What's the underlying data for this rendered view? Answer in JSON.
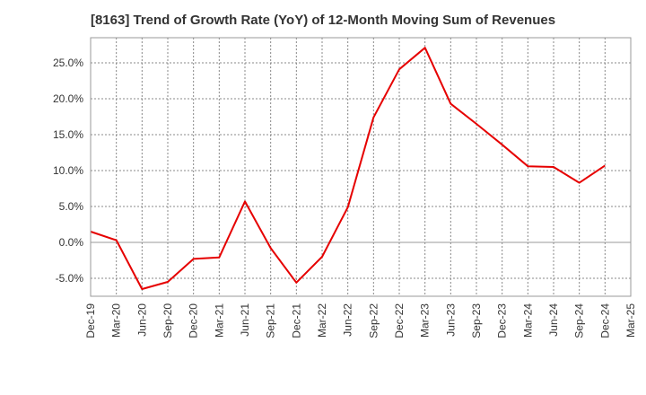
{
  "chart_data": {
    "type": "line",
    "title": "[8163]  Trend of Growth Rate (YoY) of 12-Month Moving Sum of Revenues",
    "xlabel": "",
    "ylabel": "",
    "x_ticks": [
      "Dec-19",
      "Mar-20",
      "Jun-20",
      "Sep-20",
      "Dec-20",
      "Mar-21",
      "Jun-21",
      "Sep-21",
      "Dec-21",
      "Mar-22",
      "Jun-22",
      "Sep-22",
      "Dec-22",
      "Mar-23",
      "Jun-23",
      "Sep-23",
      "Dec-23",
      "Mar-24",
      "Jun-24",
      "Sep-24",
      "Dec-24",
      "Mar-25"
    ],
    "y_ticks": [
      -5,
      0,
      5,
      10,
      15,
      20,
      25
    ],
    "y_tick_labels": [
      "-5.0%",
      "0.0%",
      "5.0%",
      "10.0%",
      "15.0%",
      "20.0%",
      "25.0%"
    ],
    "ylim": [
      -7.5,
      28.5
    ],
    "grid": true,
    "line_color": "#e60000",
    "series": [
      {
        "x": [
          "Dec-19",
          "Mar-20",
          "Jun-20",
          "Sep-20",
          "Dec-20",
          "Mar-21",
          "Jun-21",
          "Sep-21",
          "Dec-21",
          "Mar-22",
          "Jun-22",
          "Sep-22",
          "Dec-22",
          "Mar-23",
          "Jun-23",
          "Sep-23",
          "Dec-23",
          "Mar-24",
          "Jun-24",
          "Sep-24",
          "Dec-24"
        ],
        "values": [
          1.5,
          0.3,
          -6.5,
          -5.5,
          -2.3,
          -2.1,
          5.7,
          -0.8,
          -5.6,
          -2.0,
          4.9,
          17.4,
          24.1,
          27.1,
          19.3,
          16.5,
          13.6,
          10.6,
          10.5,
          8.3,
          10.7
        ]
      }
    ]
  }
}
